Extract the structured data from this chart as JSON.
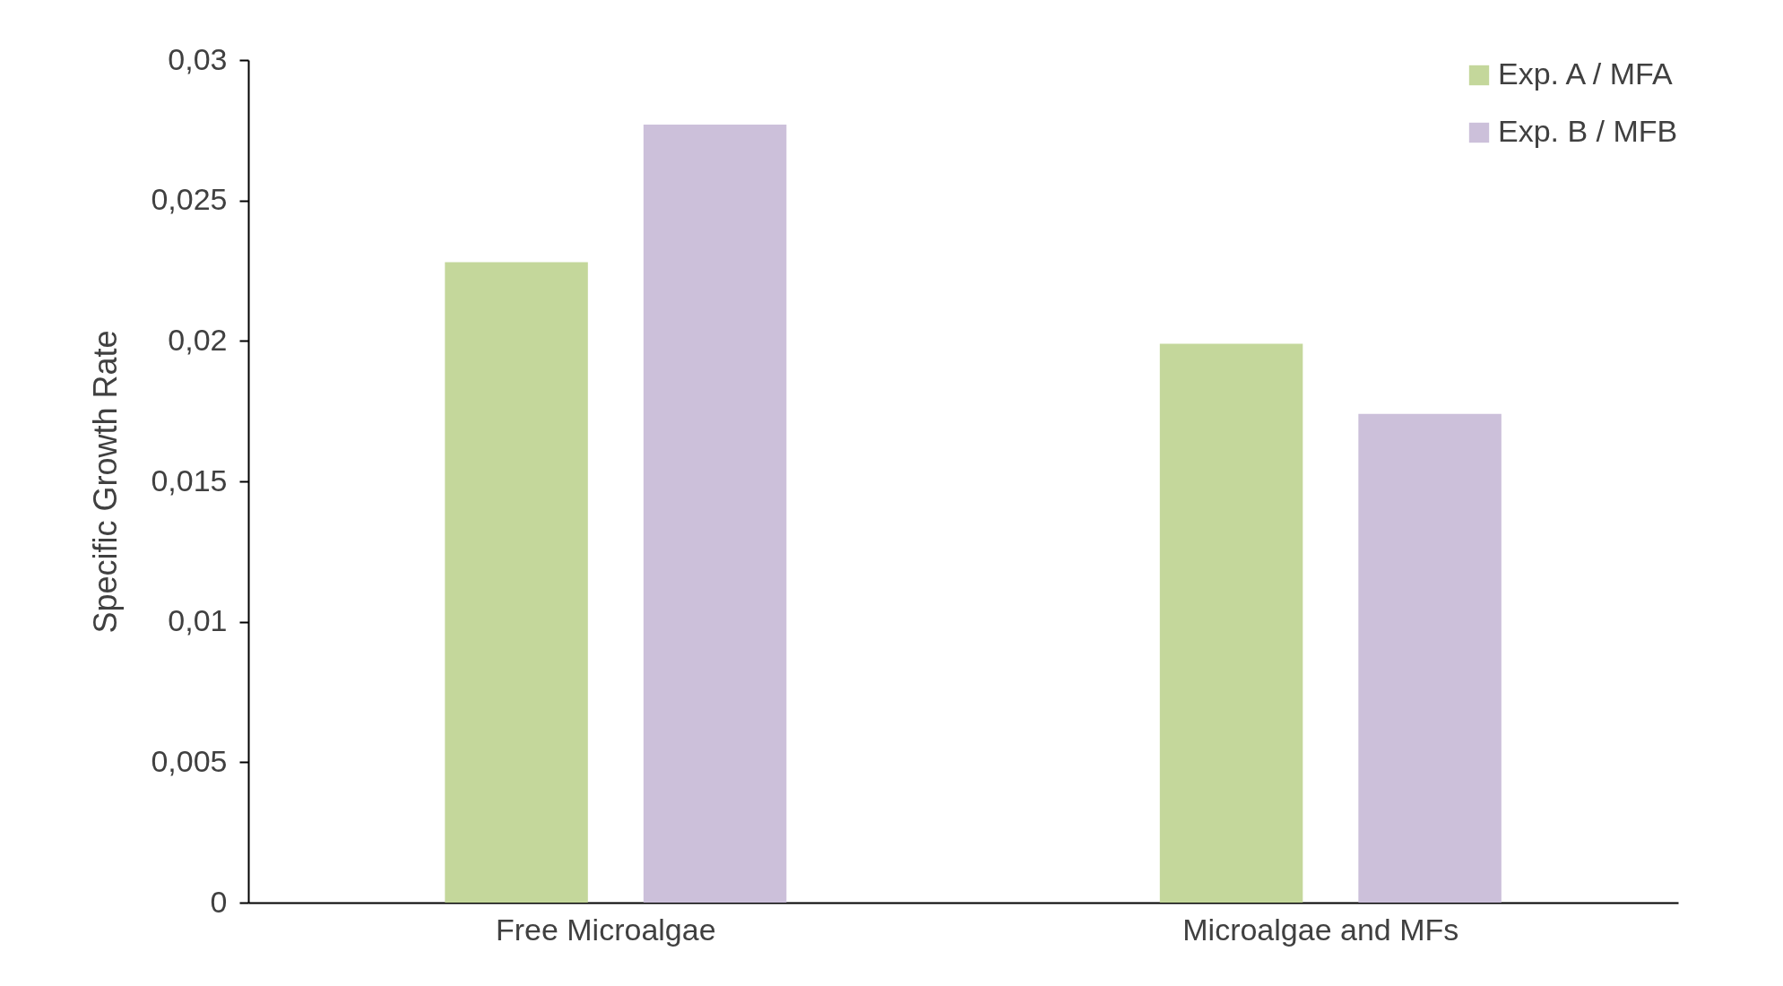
{
  "chart_data": {
    "type": "bar",
    "ylabel": "Specific Growth Rate",
    "categories": [
      "Free Microalgae",
      "Microalgae and MFs"
    ],
    "series": [
      {
        "name": "Exp. A / MFA",
        "color": "#c4d79b",
        "values": [
          0.0228,
          0.0199
        ]
      },
      {
        "name": "Exp. B / MFB",
        "color": "#ccc0da",
        "values": [
          0.0277,
          0.0174
        ]
      }
    ],
    "ylim": [
      0,
      0.03
    ],
    "yticks": [
      {
        "value": 0,
        "label": "0"
      },
      {
        "value": 0.005,
        "label": "0,005"
      },
      {
        "value": 0.01,
        "label": "0,01"
      },
      {
        "value": 0.015,
        "label": "0,015"
      },
      {
        "value": 0.02,
        "label": "0,02"
      },
      {
        "value": 0.025,
        "label": "0,025"
      },
      {
        "value": 0.03,
        "label": "0,03"
      }
    ],
    "grid": false,
    "legend": "top right"
  }
}
